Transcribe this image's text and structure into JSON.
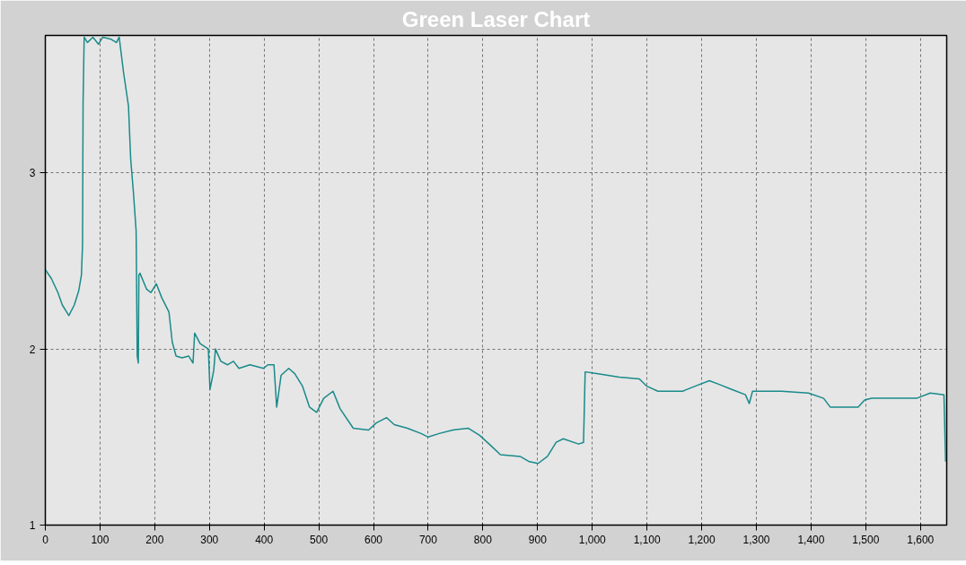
{
  "chart_data": {
    "type": "line",
    "title": "Green Laser Chart",
    "x": [
      0,
      11,
      23,
      31,
      41,
      43,
      53,
      61,
      66,
      68,
      69,
      71,
      77,
      87,
      97,
      105,
      119,
      130,
      135,
      143,
      152,
      156,
      161,
      166,
      168,
      170,
      171,
      173,
      185,
      193,
      203,
      213,
      226,
      232,
      239,
      250,
      262,
      270,
      273,
      283,
      298,
      301,
      308,
      311,
      321,
      333,
      344,
      354,
      374,
      399,
      407,
      418,
      423,
      431,
      445,
      456,
      470,
      483,
      496,
      509,
      526,
      539,
      563,
      591,
      605,
      624,
      638,
      662,
      687,
      700,
      720,
      745,
      773,
      794,
      815,
      832,
      868,
      885,
      901,
      918,
      934,
      947,
      975,
      984,
      987,
      1008,
      1049,
      1086,
      1099,
      1120,
      1165,
      1189,
      1214,
      1231,
      1255,
      1280,
      1287,
      1293,
      1346,
      1395,
      1423,
      1435,
      1486,
      1498,
      1511,
      1593,
      1618,
      1643,
      1646
    ],
    "series": [
      {
        "color": "#1a8a8a",
        "values": [
          2.45,
          2.4,
          2.32,
          2.25,
          2.2,
          2.19,
          2.25,
          2.33,
          2.42,
          2.59,
          3.4,
          3.77,
          3.74,
          3.77,
          3.73,
          3.77,
          3.76,
          3.74,
          3.77,
          3.57,
          3.38,
          3.08,
          2.89,
          2.67,
          1.96,
          1.92,
          2.42,
          2.43,
          2.34,
          2.32,
          2.37,
          2.29,
          2.21,
          2.04,
          1.96,
          1.95,
          1.96,
          1.92,
          2.09,
          2.03,
          2.0,
          1.77,
          1.88,
          2.0,
          1.93,
          1.91,
          1.93,
          1.89,
          1.91,
          1.89,
          1.91,
          1.91,
          1.67,
          1.85,
          1.89,
          1.86,
          1.79,
          1.67,
          1.64,
          1.72,
          1.76,
          1.66,
          1.55,
          1.54,
          1.58,
          1.61,
          1.57,
          1.55,
          1.52,
          1.5,
          1.52,
          1.54,
          1.55,
          1.51,
          1.45,
          1.4,
          1.39,
          1.36,
          1.35,
          1.39,
          1.47,
          1.49,
          1.46,
          1.47,
          1.87,
          1.86,
          1.84,
          1.83,
          1.79,
          1.76,
          1.76,
          1.79,
          1.82,
          1.8,
          1.77,
          1.74,
          1.69,
          1.76,
          1.76,
          1.75,
          1.72,
          1.67,
          1.67,
          1.71,
          1.72,
          1.72,
          1.75,
          1.74,
          1.36
        ]
      }
    ],
    "xlim": [
      0,
      1648
    ],
    "ylim": [
      1,
      3.78
    ],
    "xticks": [
      0,
      100,
      200,
      300,
      400,
      500,
      600,
      700,
      800,
      900,
      {
        "value": 1000,
        "label": "1,000"
      },
      {
        "value": 1100,
        "label": "1,100"
      },
      {
        "value": 1200,
        "label": "1,200"
      },
      {
        "value": 1300,
        "label": "1,300"
      },
      {
        "value": 1400,
        "label": "1,400"
      },
      {
        "value": 1500,
        "label": "1,500"
      },
      {
        "value": 1600,
        "label": "1,600"
      }
    ],
    "yticks": [
      1,
      2,
      3
    ],
    "grid": true,
    "marker": "none",
    "line_style": "solid"
  }
}
